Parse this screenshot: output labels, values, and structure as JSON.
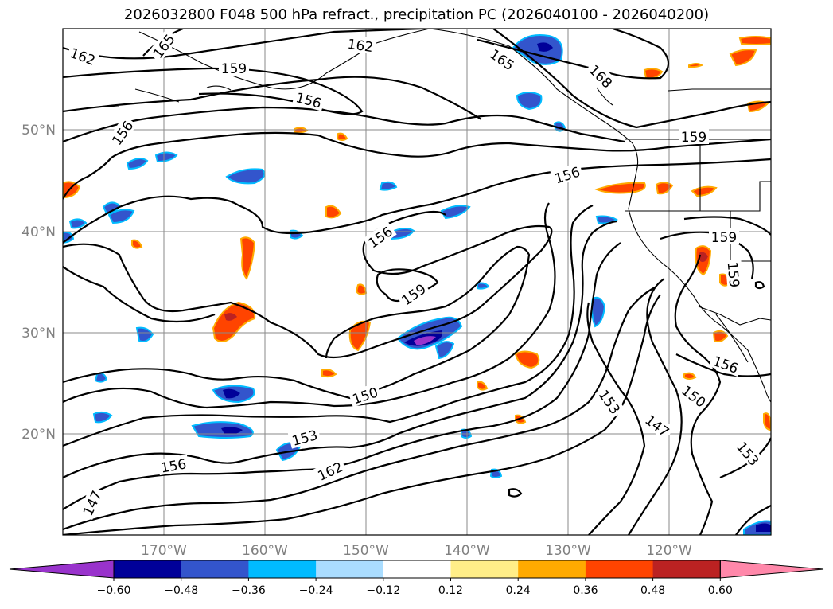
{
  "title": "2026032800 F048 500 hPa refract., precipitation PC (2026040100 - 2026040200)",
  "map": {
    "lon_labels": [
      "170°W",
      "160°W",
      "150°W",
      "140°W",
      "130°W",
      "120°W"
    ],
    "lat_labels": [
      "50°N",
      "40°N",
      "30°N",
      "20°N"
    ],
    "contour_labels": [
      {
        "id": "c162a",
        "text": "162"
      },
      {
        "id": "c165a",
        "text": "165"
      },
      {
        "id": "c162b",
        "text": "162"
      },
      {
        "id": "c165b",
        "text": "165"
      },
      {
        "id": "c168",
        "text": "168"
      },
      {
        "id": "c159a",
        "text": "159"
      },
      {
        "id": "c156a",
        "text": "156"
      },
      {
        "id": "c156b",
        "text": "156"
      },
      {
        "id": "c159b",
        "text": "159"
      },
      {
        "id": "c156c",
        "text": "156"
      },
      {
        "id": "c156d",
        "text": "156"
      },
      {
        "id": "c159c",
        "text": "159"
      },
      {
        "id": "c159d",
        "text": "159"
      },
      {
        "id": "c150a",
        "text": "150"
      },
      {
        "id": "c159e",
        "text": "159"
      },
      {
        "id": "c153a",
        "text": "153"
      },
      {
        "id": "c156e",
        "text": "156"
      },
      {
        "id": "c162c",
        "text": "162"
      },
      {
        "id": "c147a",
        "text": "147"
      },
      {
        "id": "c153b",
        "text": "153"
      },
      {
        "id": "c147b",
        "text": "147"
      },
      {
        "id": "c150b",
        "text": "150"
      },
      {
        "id": "c156f",
        "text": "156"
      },
      {
        "id": "c153c",
        "text": "153"
      }
    ]
  },
  "colorbar": {
    "colors": [
      "#9933cc",
      "#000099",
      "#3355cc",
      "#00bbff",
      "#aaddff",
      "#ffffff",
      "#ffee88",
      "#ffaa00",
      "#ff4400",
      "#bb2222",
      "#ff88aa"
    ],
    "ticks": [
      "−0.60",
      "−0.48",
      "−0.36",
      "−0.24",
      "−0.12",
      "0.12",
      "0.24",
      "0.36",
      "0.48",
      "0.60"
    ]
  }
}
